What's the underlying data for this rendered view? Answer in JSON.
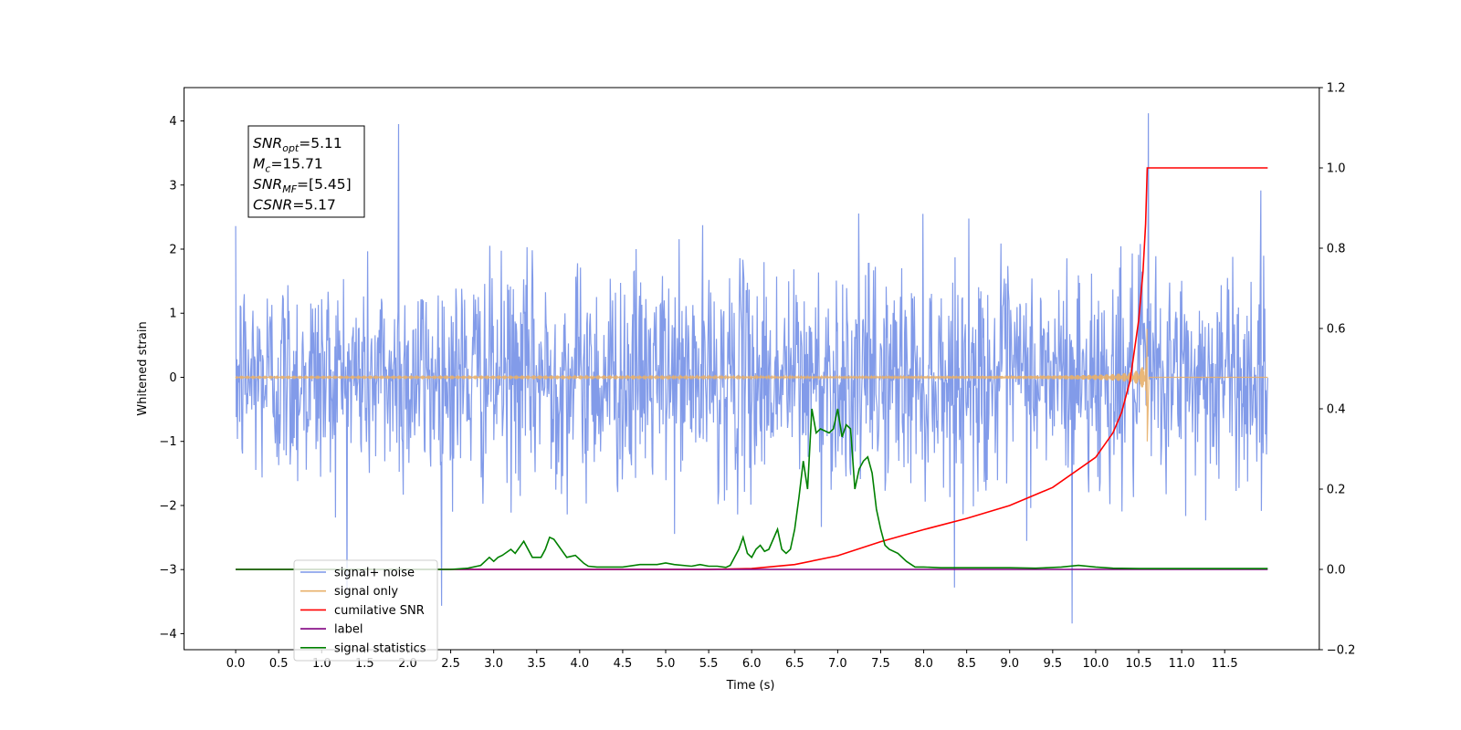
{
  "chart_data": {
    "type": "line",
    "title": "",
    "xlabel": "Time (s)",
    "ylabel": "Whitened strain",
    "xlim": [
      -0.6,
      12.6
    ],
    "ylim": [
      -4.25,
      4.52
    ],
    "y2lim": [
      -0.2,
      1.2
    ],
    "x_ticks": [
      0.0,
      0.5,
      1.0,
      1.5,
      2.0,
      2.5,
      3.0,
      3.5,
      4.0,
      4.5,
      5.0,
      5.5,
      6.0,
      6.5,
      7.0,
      7.5,
      8.0,
      8.5,
      9.0,
      9.5,
      10.0,
      10.5,
      11.0,
      11.5
    ],
    "x_tick_labels": [
      "0.0",
      "0.5",
      "1.0",
      "1.5",
      "2.0",
      "2.5",
      "3.0",
      "3.5",
      "4.0",
      "4.5",
      "5.0",
      "5.5",
      "6.0",
      "6.5",
      "7.0",
      "7.5",
      "8.0",
      "8.5",
      "9.0",
      "9.5",
      "10.0",
      "10.5",
      "11.0",
      "11.5"
    ],
    "y_ticks": [
      -4,
      -3,
      -2,
      -1,
      0,
      1,
      2,
      3,
      4
    ],
    "y_tick_labels": [
      "−4",
      "−3",
      "−2",
      "−1",
      "0",
      "1",
      "2",
      "3",
      "4"
    ],
    "y2_ticks": [
      -0.2,
      0.0,
      0.2,
      0.4,
      0.6,
      0.8,
      1.0,
      1.2
    ],
    "y2_tick_labels": [
      "−0.2",
      "0.0",
      "0.2",
      "0.4",
      "0.6",
      "0.8",
      "1.0",
      "1.2"
    ],
    "grid": false,
    "legend_position": "lower-left",
    "annotation": {
      "lines": [
        {
          "name": "SNR",
          "sub": "opt",
          "value": "=5.11"
        },
        {
          "name": "M",
          "sub": "c",
          "value": "=15.71"
        },
        {
          "name": "SNR",
          "sub": "MF",
          "value": "=[5.45]"
        },
        {
          "name": "CSNR",
          "sub": "",
          "value": "=5.17"
        }
      ]
    },
    "series": [
      {
        "name": "signal+ noise",
        "axis": "left",
        "color": "#7b96e8",
        "style": "noise",
        "t_start": 0.0,
        "t_end": 12.0,
        "sigma": 0.85,
        "envelope_y": {
          "min": -3.84,
          "max": 4.12
        }
      },
      {
        "name": "signal only",
        "axis": "left",
        "color": "#e8b06a",
        "style": "chirp",
        "t_start": 0.0,
        "t_end": 10.6,
        "t_merger": 10.6,
        "peak_amplitude": 0.85,
        "after": 0.0
      },
      {
        "name": "cumilative SNR",
        "axis": "right",
        "color": "#ff0000",
        "style": "line",
        "x": [
          0,
          5.5,
          6.0,
          6.5,
          7.0,
          7.5,
          8.0,
          8.5,
          9.0,
          9.5,
          10.0,
          10.2,
          10.3,
          10.4,
          10.5,
          10.55,
          10.58,
          10.6,
          11.5,
          12.0
        ],
        "y": [
          0,
          0,
          0.002,
          0.012,
          0.034,
          0.069,
          0.099,
          0.127,
          0.159,
          0.204,
          0.279,
          0.34,
          0.39,
          0.47,
          0.62,
          0.74,
          0.86,
          1.0,
          1.0,
          1.0
        ]
      },
      {
        "name": "label",
        "axis": "right",
        "color": "#800080",
        "style": "line",
        "x": [
          0,
          12.0
        ],
        "y": [
          0,
          0
        ]
      },
      {
        "name": "signal statistics",
        "axis": "right",
        "color": "#008000",
        "style": "line",
        "x": [
          0,
          2.5,
          2.7,
          2.85,
          2.95,
          3.0,
          3.05,
          3.1,
          3.2,
          3.25,
          3.3,
          3.35,
          3.45,
          3.5,
          3.55,
          3.6,
          3.65,
          3.7,
          3.75,
          3.85,
          3.95,
          4.05,
          4.1,
          4.2,
          4.3,
          4.5,
          4.7,
          4.8,
          4.9,
          5.0,
          5.1,
          5.3,
          5.4,
          5.5,
          5.6,
          5.7,
          5.75,
          5.8,
          5.85,
          5.9,
          5.95,
          6.0,
          6.05,
          6.1,
          6.15,
          6.2,
          6.3,
          6.35,
          6.4,
          6.45,
          6.5,
          6.55,
          6.6,
          6.65,
          6.7,
          6.75,
          6.8,
          6.9,
          6.95,
          7.0,
          7.05,
          7.1,
          7.15,
          7.2,
          7.25,
          7.3,
          7.35,
          7.4,
          7.45,
          7.5,
          7.55,
          7.6,
          7.7,
          7.8,
          7.9,
          8.0,
          8.2,
          8.5,
          9.0,
          9.3,
          9.6,
          9.8,
          10.0,
          10.2,
          10.5,
          11.0,
          11.5,
          12.0
        ],
        "y": [
          0,
          0,
          0.003,
          0.01,
          0.03,
          0.02,
          0.03,
          0.035,
          0.05,
          0.04,
          0.055,
          0.07,
          0.03,
          0.03,
          0.03,
          0.05,
          0.08,
          0.075,
          0.06,
          0.03,
          0.035,
          0.015,
          0.008,
          0.006,
          0.006,
          0.006,
          0.012,
          0.012,
          0.012,
          0.016,
          0.012,
          0.008,
          0.012,
          0.008,
          0.008,
          0.005,
          0.01,
          0.03,
          0.05,
          0.08,
          0.04,
          0.03,
          0.05,
          0.06,
          0.045,
          0.05,
          0.1,
          0.05,
          0.04,
          0.05,
          0.1,
          0.18,
          0.27,
          0.2,
          0.4,
          0.34,
          0.35,
          0.34,
          0.35,
          0.4,
          0.33,
          0.36,
          0.35,
          0.2,
          0.25,
          0.27,
          0.28,
          0.24,
          0.15,
          0.1,
          0.06,
          0.05,
          0.04,
          0.02,
          0.006,
          0.006,
          0.004,
          0.004,
          0.004,
          0.003,
          0.006,
          0.01,
          0.006,
          0.003,
          0.002,
          0.002,
          0.002,
          0.002
        ]
      }
    ]
  }
}
